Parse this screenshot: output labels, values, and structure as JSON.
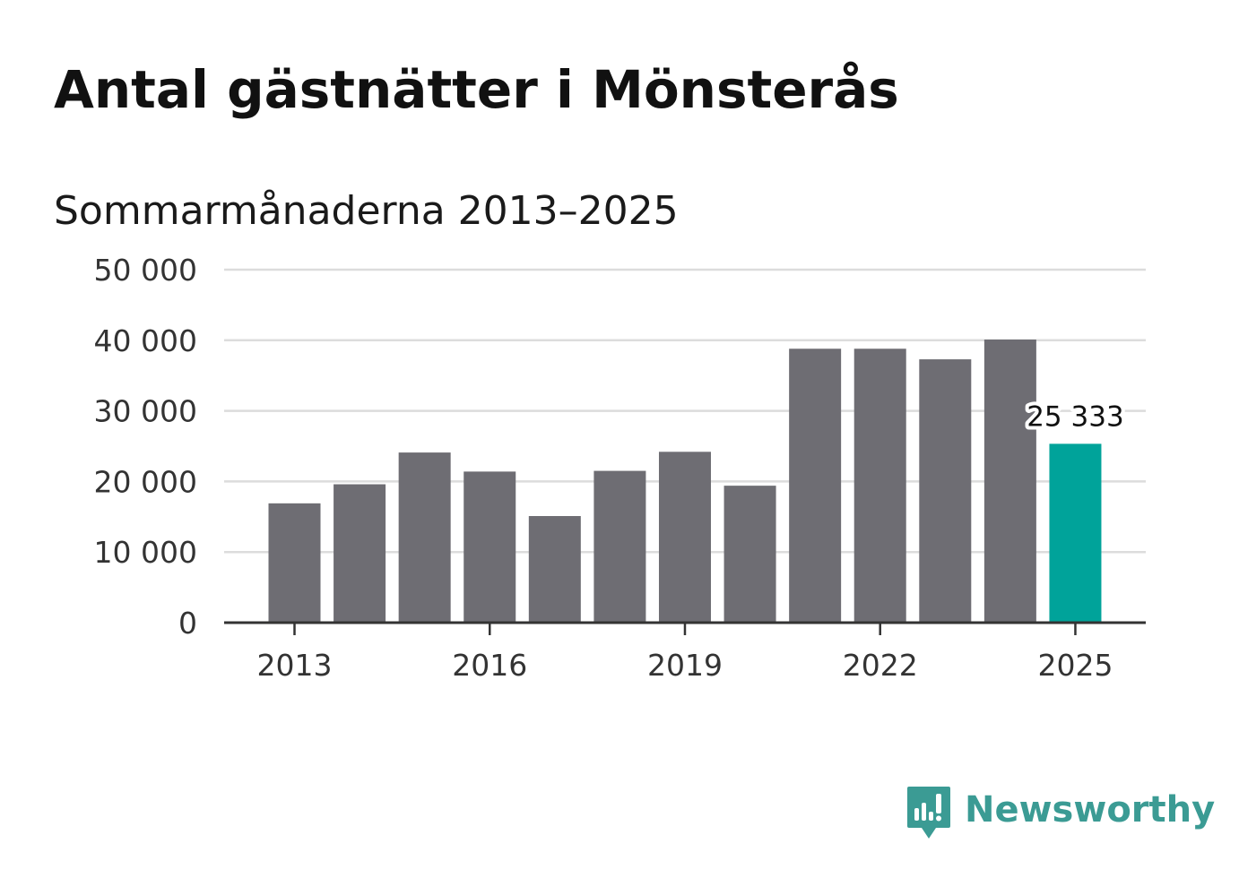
{
  "colors": {
    "bar_default": "#6e6d73",
    "bar_highlight": "#00a39a",
    "grid": "#dcdcdc",
    "axis": "#333333",
    "brand": "#3b9b94"
  },
  "brand": {
    "name": "Newsworthy",
    "icon": "newsworthy-logo-icon"
  },
  "chart_data": {
    "type": "bar",
    "title": "Antal gästnätter i Mönsterås",
    "subtitle": "Sommarmånaderna 2013–2025",
    "xlabel": "",
    "ylabel": "",
    "categories": [
      2013,
      2014,
      2015,
      2016,
      2017,
      2018,
      2019,
      2020,
      2021,
      2022,
      2023,
      2024,
      2025
    ],
    "values": [
      16900,
      19600,
      24100,
      21400,
      15100,
      21500,
      24200,
      19400,
      38800,
      38800,
      37300,
      40100,
      25333
    ],
    "highlight": [
      2025
    ],
    "ylim": [
      0,
      50000
    ],
    "y_ticks": [
      0,
      10000,
      20000,
      30000,
      40000,
      50000
    ],
    "y_tick_labels": [
      "0",
      "10 000",
      "20 000",
      "30 000",
      "40 000",
      "50 000"
    ],
    "x_ticks": [
      2013,
      2016,
      2019,
      2022,
      2025
    ],
    "x_tick_labels": [
      "2013",
      "2016",
      "2019",
      "2022",
      "2025"
    ],
    "data_labels": [
      {
        "category": 2025,
        "text": "25 333"
      }
    ],
    "grid": true,
    "legend": "none"
  }
}
